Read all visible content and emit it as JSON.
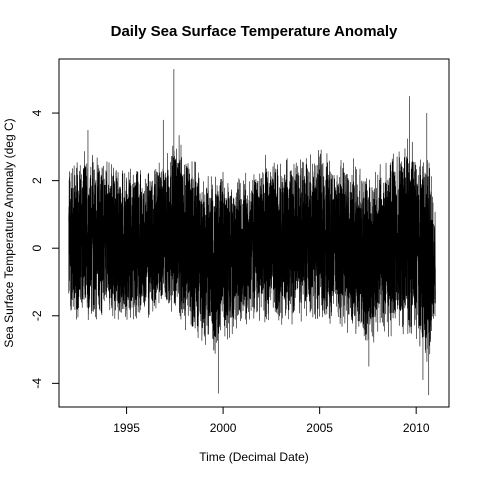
{
  "chart_data": {
    "type": "line",
    "title": "Daily Sea Surface Temperature Anomaly",
    "xlabel": "Time (Decimal Date)",
    "ylabel": "Sea Surface Temperature Anomaly (deg C)",
    "xlim": [
      1991.5,
      2011.7
    ],
    "ylim": [
      -4.7,
      5.6
    ],
    "x_ticks": [
      1995,
      2000,
      2005,
      2010
    ],
    "x_tick_labels": [
      "1995",
      "2000",
      "2005",
      "2010"
    ],
    "y_ticks": [
      -4,
      -2,
      0,
      2,
      4
    ],
    "y_tick_labels": [
      "-4",
      "-2",
      "0",
      "2",
      "4"
    ],
    "grid": false,
    "line_color": "#000000",
    "series": [
      {
        "x_start": 1992.0,
        "x_end": 2011.0,
        "points_per_year": 365,
        "typical_range": [
          -2.0,
          2.2
        ],
        "envelope": {
          "x": [
            1992.0,
            1993.0,
            1994.0,
            1995.0,
            1996.0,
            1997.0,
            1997.5,
            1998.0,
            1999.0,
            1999.7,
            2000.0,
            2001.0,
            2002.0,
            2003.0,
            2004.0,
            2005.0,
            2006.0,
            2007.0,
            2007.6,
            2008.0,
            2009.0,
            2009.7,
            2010.0,
            2010.6,
            2011.0
          ],
          "upper": [
            2.8,
            3.0,
            2.8,
            2.5,
            2.6,
            2.8,
            3.6,
            3.2,
            2.4,
            2.6,
            2.4,
            2.4,
            2.8,
            2.7,
            2.9,
            3.1,
            2.9,
            2.6,
            2.5,
            2.7,
            2.9,
            3.6,
            3.0,
            3.2,
            1.0
          ],
          "lower": [
            -2.3,
            -2.4,
            -2.3,
            -2.4,
            -2.3,
            -2.0,
            -2.1,
            -2.7,
            -2.9,
            -3.4,
            -2.9,
            -2.5,
            -2.3,
            -2.4,
            -2.2,
            -2.3,
            -2.5,
            -2.9,
            -3.2,
            -2.8,
            -2.6,
            -2.8,
            -3.1,
            -3.6,
            -2.4
          ]
        },
        "extremes": [
          {
            "x": 1997.45,
            "y": 5.3
          },
          {
            "x": 1999.75,
            "y": -4.3
          },
          {
            "x": 2009.65,
            "y": 4.5
          },
          {
            "x": 2010.55,
            "y": 4.0
          },
          {
            "x": 2010.65,
            "y": -4.35
          },
          {
            "x": 2010.35,
            "y": -3.9
          },
          {
            "x": 2007.55,
            "y": -3.5
          },
          {
            "x": 1993.0,
            "y": 3.5
          },
          {
            "x": 1996.9,
            "y": 3.8
          }
        ]
      }
    ]
  }
}
